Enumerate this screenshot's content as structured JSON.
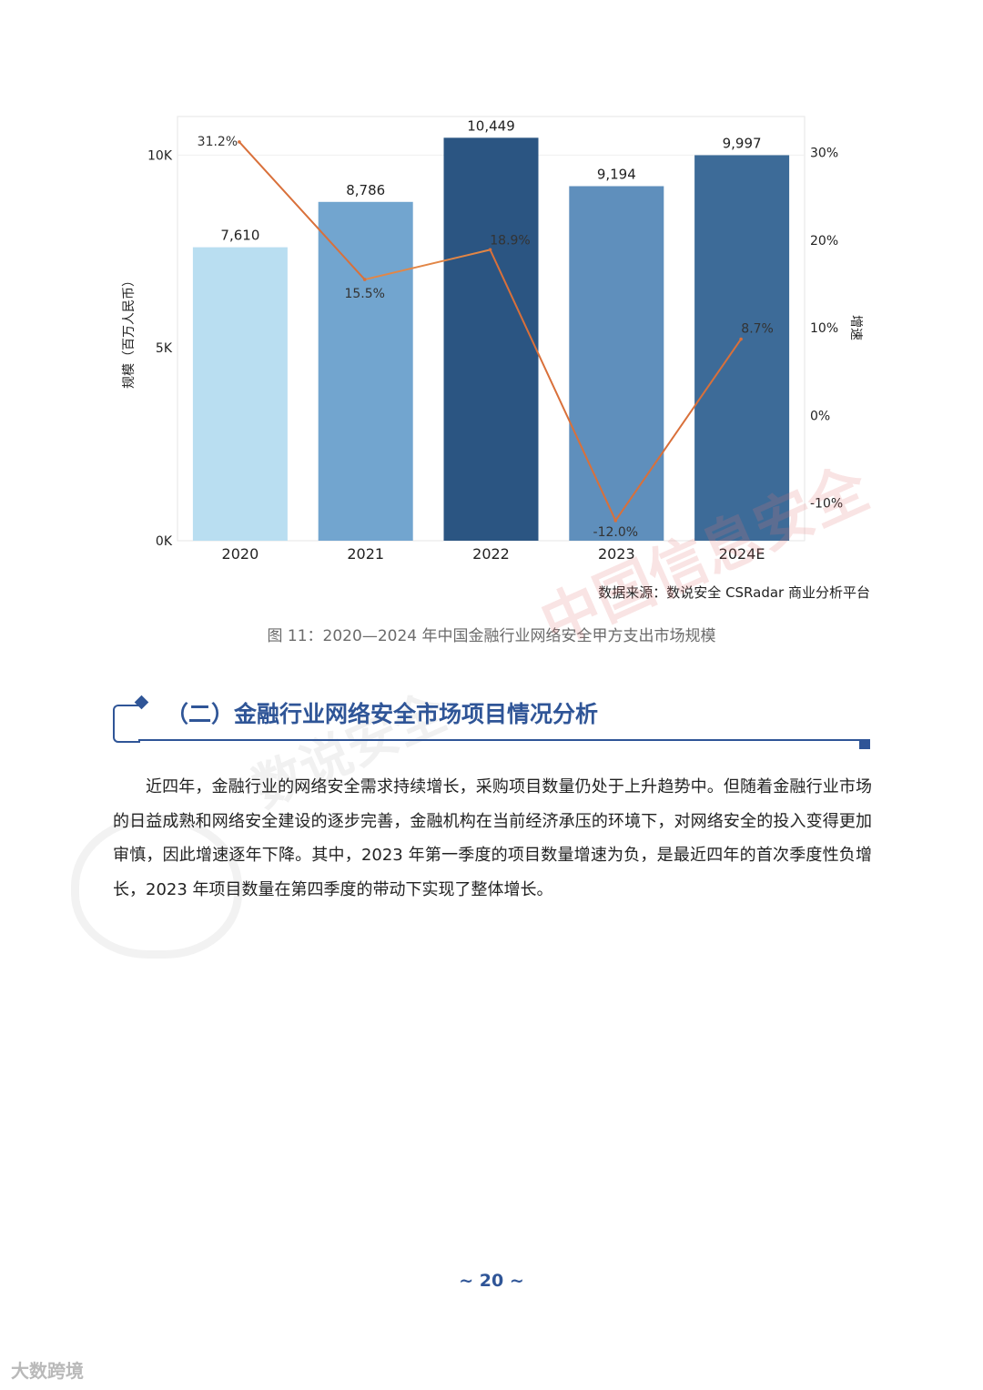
{
  "chart_data": {
    "type": "bar",
    "categories": [
      "2020",
      "2021",
      "2022",
      "2023",
      "2024E"
    ],
    "series": [
      {
        "name": "",
        "type": "bar",
        "axis": "left",
        "values": [
          7610,
          8786,
          10449,
          9194,
          9997
        ],
        "value_labels": [
          "7,610",
          "8,786",
          "10,449",
          "9,194",
          "9,997"
        ],
        "colors": [
          "#b9def1",
          "#72a5cf",
          "#2b5582",
          "#5f8fbc",
          "#3d6b98"
        ]
      },
      {
        "name": "",
        "type": "line",
        "axis": "right",
        "values": [
          31.2,
          15.5,
          18.9,
          -12.0,
          8.7
        ],
        "value_labels": [
          "31.2%",
          "15.5%",
          "18.9%",
          "-12.0%",
          "8.7%"
        ],
        "color": "#d9703a"
      }
    ],
    "ylabel": "规模（百万人民币）",
    "y2label": "增速",
    "ylim": [
      0,
      11000
    ],
    "y2lim": [
      -14.3,
      34.1
    ],
    "yticks": [
      0,
      5000,
      10000
    ],
    "ytick_labels": [
      "0K",
      "5K",
      "10K"
    ],
    "y2ticks": [
      30,
      20,
      10,
      0,
      -10
    ],
    "y2tick_labels": [
      "30%",
      "20%",
      "10%",
      "0%",
      "-10%"
    ],
    "grid": false,
    "source": "数据来源：数说安全 CSRadar 商业分析平台"
  },
  "caption": "图 11：2020—2024 年中国金融行业网络安全甲方支出市场规模",
  "section": {
    "title": "（二）金融行业网络安全市场项目情况分析"
  },
  "body_text": "近四年，金融行业的网络安全需求持续增长，采购项目数量仍处于上升趋势中。但随着金融行业市场的日益成熟和网络安全建设的逐步完善，金融机构在当前经济承压的环境下，对网络安全的投入变得更加审慎，因此增速逐年下降。其中，2023 年第一季度的项目数量增速为负，是最近四年的首次季度性负增长，2023 年项目数量在第四季度的带动下实现了整体增长。",
  "page_number": "~ 20 ~",
  "watermarks": [
    "中国信息安全",
    "数说安全",
    "大数跨境"
  ]
}
